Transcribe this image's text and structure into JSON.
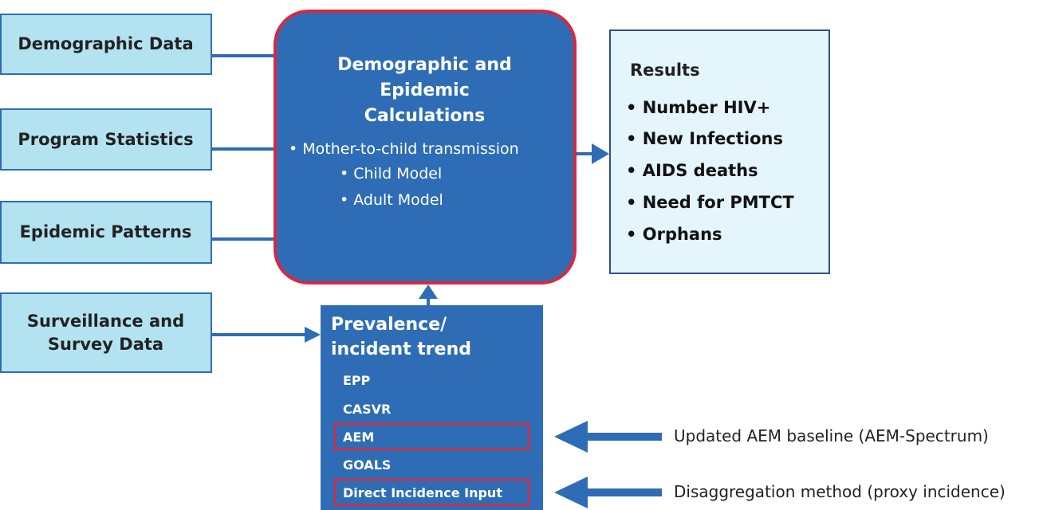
{
  "inputs": [
    "Demographic Data",
    "Program Statistics",
    "Epidemic Patterns",
    "Surveillance and Survey Data"
  ],
  "calculations": {
    "title": "Demographic and Epidemic Calculations",
    "item": "Mother-to-child transmission",
    "subitems": [
      "Child Model",
      "Adult Model"
    ]
  },
  "results": {
    "title": "Results",
    "items": [
      "Number HIV+",
      "New Infections",
      "AIDS deaths",
      "Need for PMTCT",
      "Orphans"
    ]
  },
  "trend": {
    "title": "Prevalence/ incident trend",
    "methods": [
      "EPP",
      "CASVR",
      "AEM",
      "GOALS",
      "Direct Incidence Input"
    ]
  },
  "annotations": [
    "Updated AEM baseline (AEM-Spectrum)",
    "Disaggregation method (proxy incidence)"
  ]
}
